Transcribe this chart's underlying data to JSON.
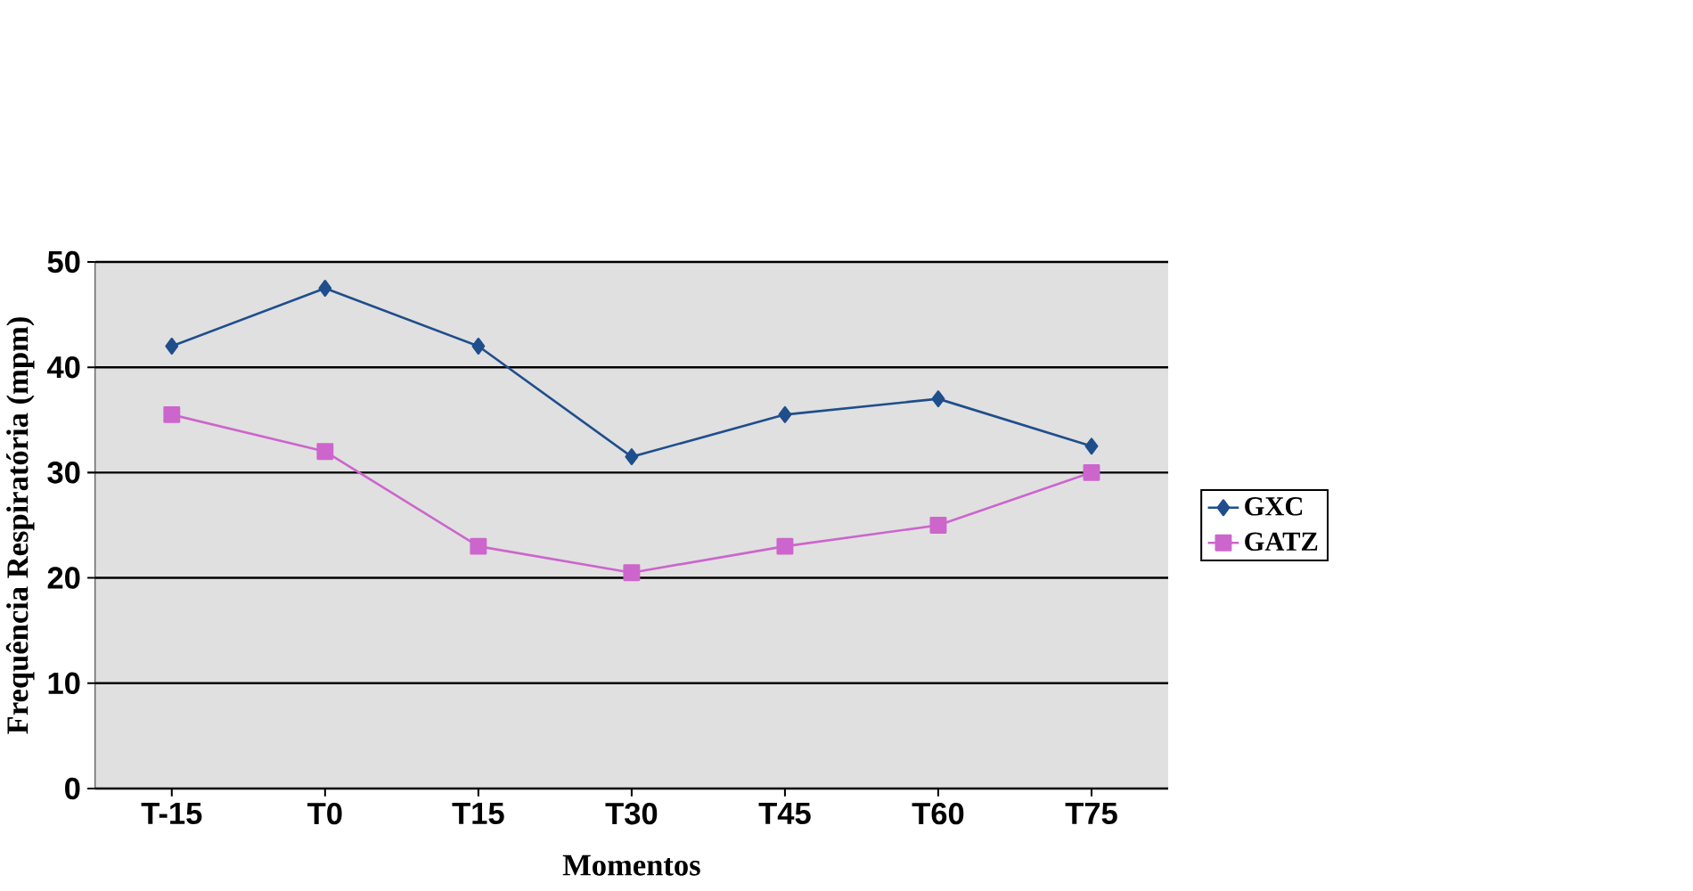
{
  "chart_data": {
    "type": "line",
    "xlabel": "Momentos",
    "ylabel": "Frequência Respiratória (mpm)",
    "categories": [
      "T-15",
      "T0",
      "T15",
      "T30",
      "T45",
      "T60",
      "T75"
    ],
    "series": [
      {
        "name": "GXC",
        "color": "#1f4e8c",
        "marker": "diamond",
        "values": [
          42,
          47.5,
          42,
          31.5,
          35.5,
          37,
          32.5
        ]
      },
      {
        "name": "GATZ",
        "color": "#cc66cc",
        "marker": "square",
        "values": [
          35.5,
          32,
          23,
          20.5,
          23,
          25,
          30
        ]
      }
    ],
    "ylim": [
      0,
      50
    ],
    "yticks": [
      0,
      10,
      20,
      30,
      40,
      50
    ],
    "grid": "y",
    "legend": "right",
    "line_style": "solid"
  }
}
